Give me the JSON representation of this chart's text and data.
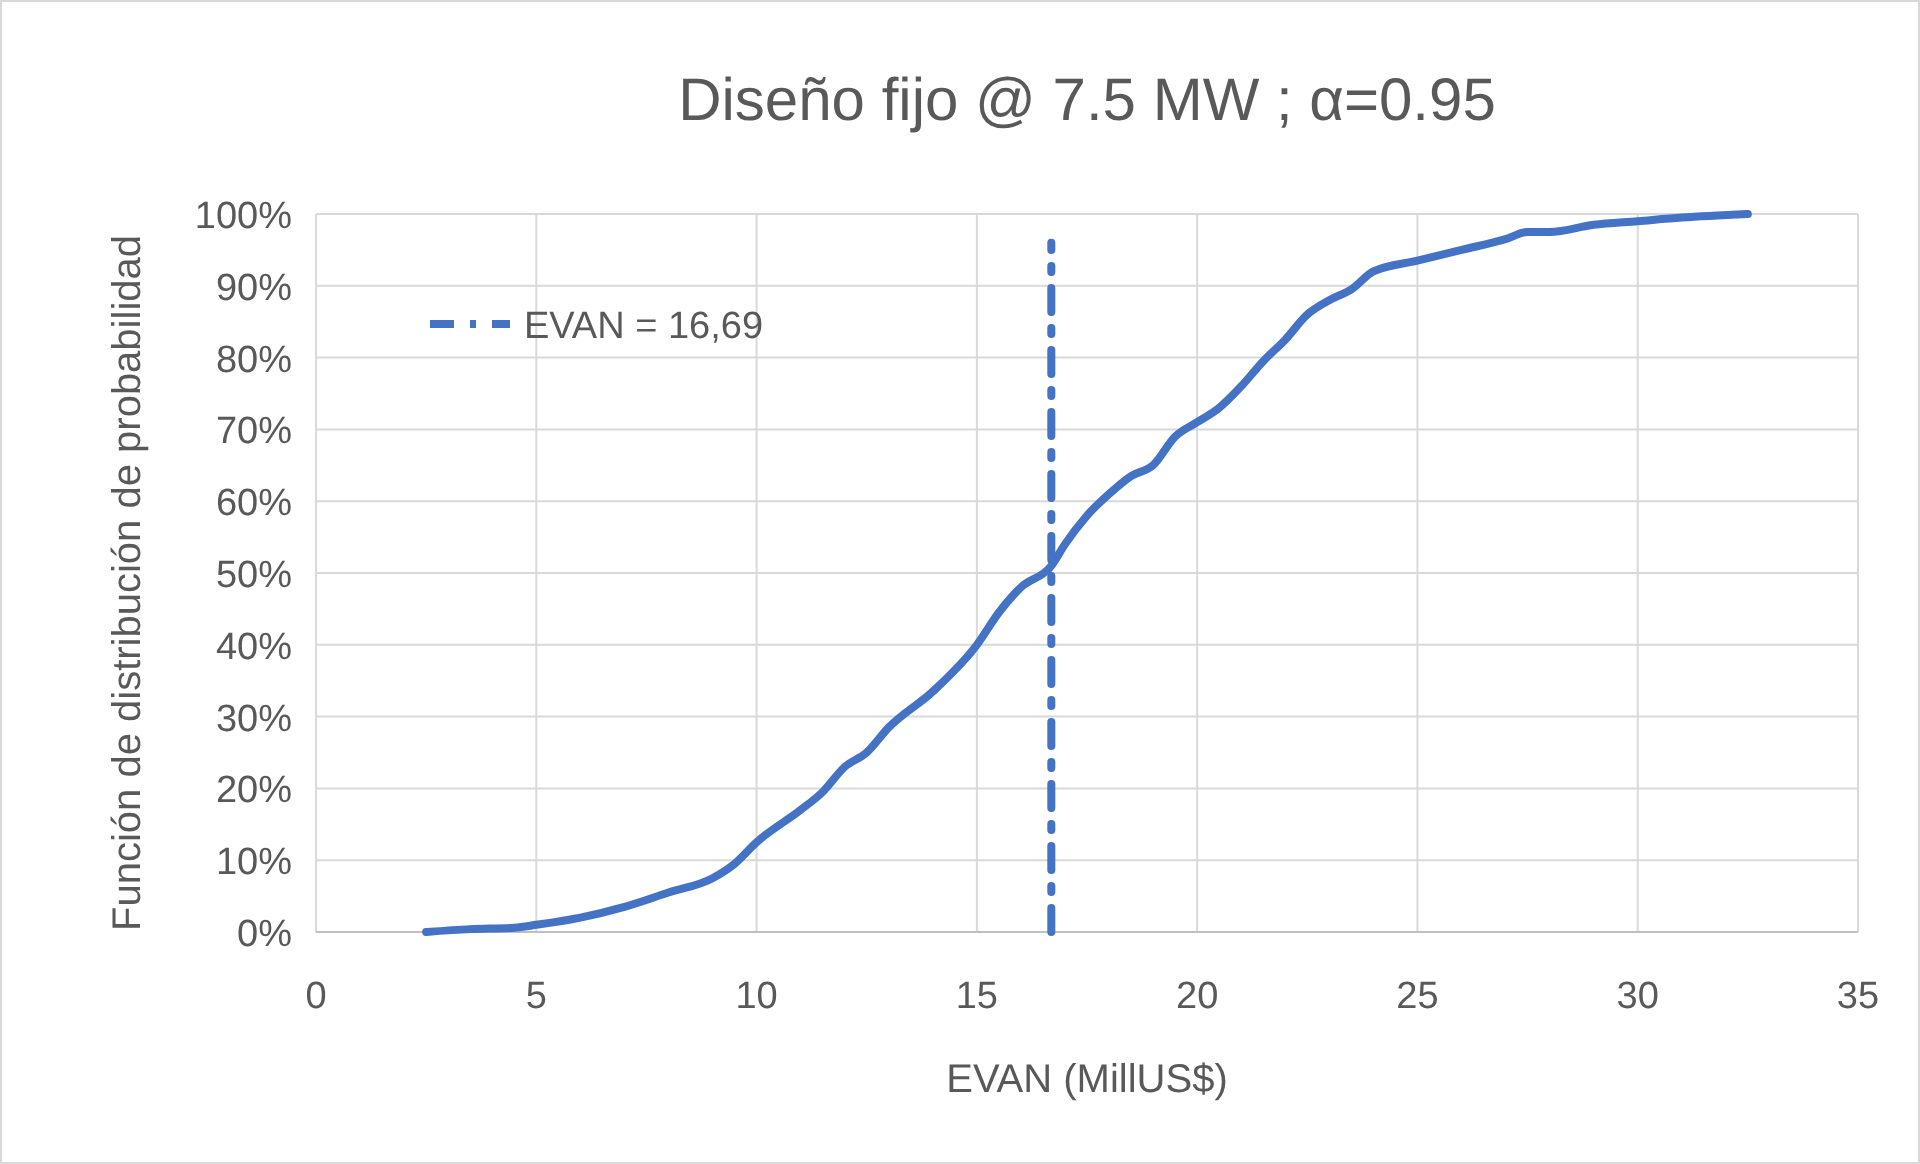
{
  "chart_data": {
    "type": "line",
    "title": "Diseño fijo @ 7.5 MW ; α=0.95",
    "xlabel": "EVAN (MillUS$)",
    "ylabel": "Función de distribución de probabilidad",
    "xlim": [
      0,
      35
    ],
    "xticks": [
      0,
      5,
      10,
      15,
      20,
      25,
      30,
      35
    ],
    "ylim": [
      0,
      100
    ],
    "yticks": [
      {
        "value": 0,
        "label": "0%"
      },
      {
        "value": 10,
        "label": "10%"
      },
      {
        "value": 20,
        "label": "20%"
      },
      {
        "value": 30,
        "label": "30%"
      },
      {
        "value": 40,
        "label": "40%"
      },
      {
        "value": 50,
        "label": "50%"
      },
      {
        "value": 60,
        "label": "60%"
      },
      {
        "value": 70,
        "label": "70%"
      },
      {
        "value": 80,
        "label": "80%"
      },
      {
        "value": 90,
        "label": "90%"
      },
      {
        "value": 100,
        "label": "100%"
      }
    ],
    "grid": true,
    "legend": "top left",
    "series": [
      {
        "color": "#4472c4",
        "line_style": "solid",
        "x": [
          2.5,
          3.5,
          4.5,
          5,
          6,
          7,
          8,
          9,
          9.5,
          10,
          11,
          11.5,
          12,
          12.5,
          13,
          14,
          15,
          15.5,
          16,
          16.69,
          17,
          17.5,
          18,
          18.5,
          19,
          19.5,
          20,
          20.5,
          21,
          21.5,
          22,
          22.5,
          23,
          23.5,
          24,
          25,
          26,
          27,
          27.5,
          28,
          29,
          30,
          31,
          32.5
        ],
        "values": [
          0,
          0.4,
          0.6,
          1,
          2,
          3.5,
          5.5,
          7.5,
          9.5,
          12.5,
          17,
          19.5,
          23,
          25,
          28.5,
          33.5,
          40,
          44.5,
          48,
          51,
          54,
          58,
          61,
          63.5,
          65,
          69,
          71,
          73,
          76,
          79.5,
          82.5,
          86,
          88,
          89.5,
          92,
          93.5,
          95,
          96.5,
          97.5,
          97.5,
          98.5,
          99,
          99.5,
          100
        ]
      },
      {
        "name": "EVAN = 16,69",
        "color": "#4472c4",
        "line_style": "dashed",
        "x": [
          16.69,
          16.69
        ],
        "values": [
          0,
          96
        ]
      }
    ]
  }
}
